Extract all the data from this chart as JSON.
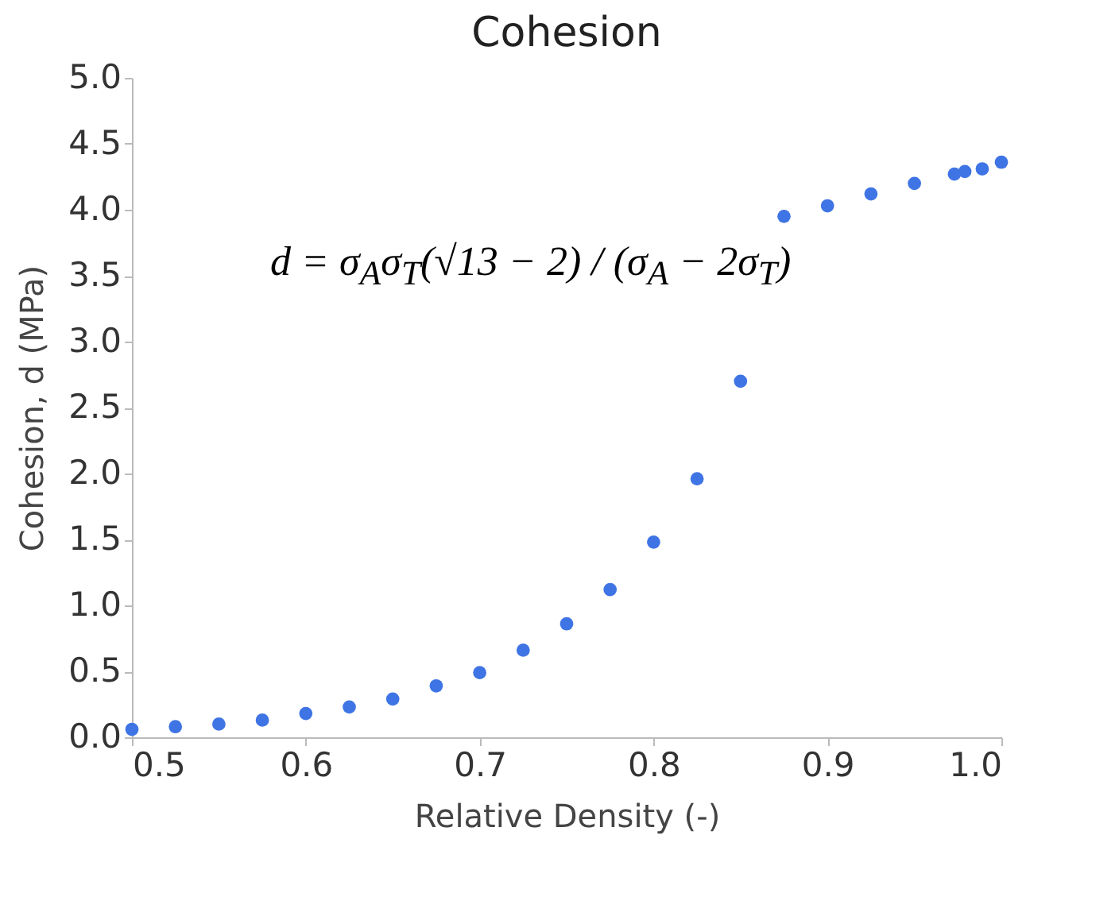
{
  "chart_data": {
    "type": "scatter",
    "title": "Cohesion",
    "xlabel": "Relative Density (-)",
    "ylabel": "Cohesion, d (MPa)",
    "x": [
      0.5,
      0.525,
      0.55,
      0.575,
      0.6,
      0.625,
      0.65,
      0.675,
      0.7,
      0.725,
      0.75,
      0.775,
      0.8,
      0.825,
      0.85,
      0.875,
      0.9,
      0.925,
      0.95,
      0.973,
      0.979,
      0.989,
      1.0
    ],
    "series": [
      {
        "color": "#3f74e4",
        "values": [
          0.06,
          0.08,
          0.1,
          0.13,
          0.18,
          0.23,
          0.29,
          0.39,
          0.49,
          0.66,
          0.86,
          1.12,
          1.48,
          1.96,
          2.7,
          3.95,
          4.03,
          4.12,
          4.2,
          4.27,
          4.29,
          4.31,
          4.36
        ]
      }
    ],
    "xlim": [
      0.5,
      1.0
    ],
    "ylim": [
      0,
      5
    ],
    "xticks": [
      {
        "value": 0.5,
        "label": "0.5"
      },
      {
        "value": 0.6,
        "label": "0.6"
      },
      {
        "value": 0.7,
        "label": "0.7"
      },
      {
        "value": 0.8,
        "label": "0.8"
      },
      {
        "value": 0.9,
        "label": "0.9"
      },
      {
        "value": 1.0,
        "label": "1.0"
      }
    ],
    "yticks": [
      {
        "value": 0,
        "label": "0.0"
      },
      {
        "value": 0.5,
        "label": "0.5"
      },
      {
        "value": 1,
        "label": "1.0"
      },
      {
        "value": 1.5,
        "label": "1.5"
      },
      {
        "value": 2,
        "label": "2.0"
      },
      {
        "value": 2.5,
        "label": "2.5"
      },
      {
        "value": 3,
        "label": "3.0"
      },
      {
        "value": 3.5,
        "label": "3.5"
      },
      {
        "value": 4,
        "label": "4.0"
      },
      {
        "value": 4.5,
        "label": "4.5"
      },
      {
        "value": 5,
        "label": "5.0"
      }
    ],
    "marker": "circle",
    "annotations": [
      "d = σ$_{A}$σ$_{T}$(√13 − 2) / (σ$_{A}$ − 2σ$_{T}$)"
    ]
  }
}
